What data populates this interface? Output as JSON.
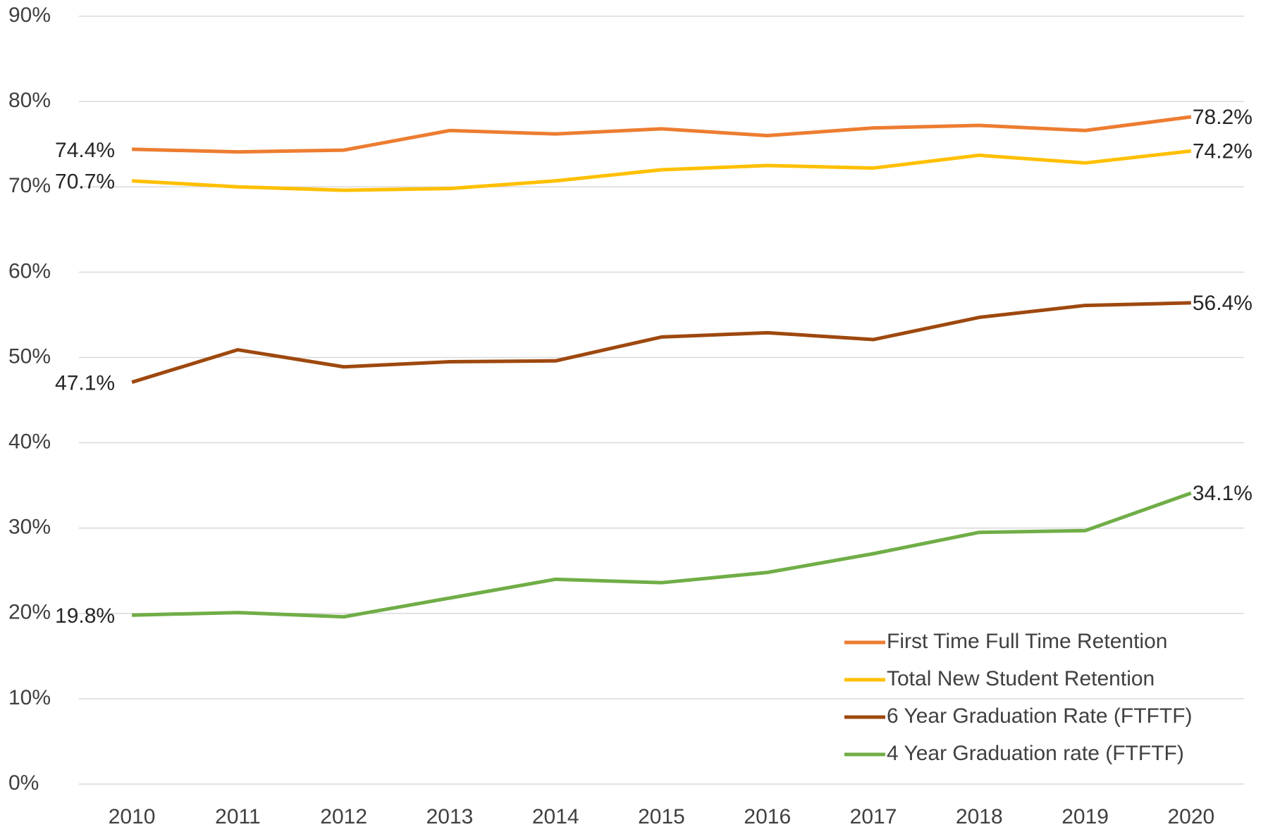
{
  "chart_data": {
    "type": "line",
    "categories": [
      "2010",
      "2011",
      "2012",
      "2013",
      "2014",
      "2015",
      "2016",
      "2017",
      "2018",
      "2019",
      "2020"
    ],
    "series": [
      {
        "name": "First Time Full Time Retention",
        "color": "#ed7d31",
        "values": [
          74.4,
          74.1,
          74.3,
          76.6,
          76.2,
          76.8,
          76.0,
          76.9,
          77.2,
          76.6,
          78.2
        ],
        "value_labels": [
          "74.4%",
          null,
          null,
          null,
          null,
          null,
          null,
          null,
          null,
          null,
          "78.2%"
        ]
      },
      {
        "name": "Total New Student Retention",
        "color": "#ffc000",
        "values": [
          70.7,
          70.0,
          69.6,
          69.8,
          70.7,
          72.0,
          72.5,
          72.2,
          73.7,
          72.8,
          74.2
        ],
        "value_labels": [
          "70.7%",
          null,
          null,
          null,
          null,
          null,
          null,
          null,
          null,
          null,
          "74.2%"
        ]
      },
      {
        "name": "6 Year Graduation Rate (FTFTF)",
        "color": "#9e480e",
        "values": [
          47.1,
          50.9,
          48.9,
          49.5,
          49.6,
          52.4,
          52.9,
          52.1,
          54.7,
          56.1,
          56.4
        ],
        "value_labels": [
          "47.1%",
          null,
          null,
          null,
          null,
          null,
          null,
          null,
          null,
          null,
          "56.4%"
        ]
      },
      {
        "name": "4 Year Graduation rate (FTFTF)",
        "color": "#70ad47",
        "values": [
          19.8,
          20.1,
          19.6,
          21.8,
          24.0,
          23.6,
          24.8,
          27.0,
          29.5,
          29.7,
          34.1
        ],
        "value_labels": [
          "19.8%",
          null,
          null,
          null,
          null,
          null,
          null,
          null,
          null,
          null,
          "34.1%"
        ]
      }
    ],
    "ylim": [
      0,
      90
    ],
    "yticks": [
      {
        "value": 0,
        "label": "0%"
      },
      {
        "value": 10,
        "label": "10%"
      },
      {
        "value": 20,
        "label": "20%"
      },
      {
        "value": 30,
        "label": "30%"
      },
      {
        "value": 40,
        "label": "40%"
      },
      {
        "value": 50,
        "label": "50%"
      },
      {
        "value": 60,
        "label": "60%"
      },
      {
        "value": 70,
        "label": "70%"
      },
      {
        "value": 80,
        "label": "80%"
      },
      {
        "value": 90,
        "label": "90%"
      }
    ],
    "grid": true,
    "legend": "lower right"
  }
}
